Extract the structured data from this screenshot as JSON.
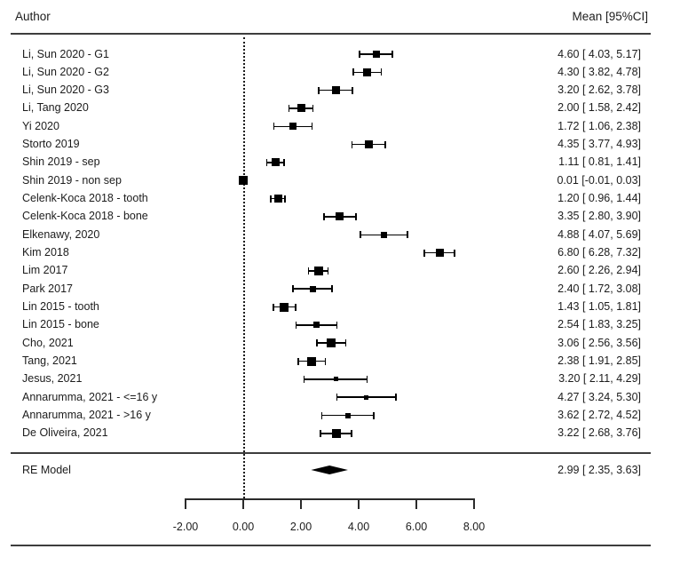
{
  "header": {
    "left": "Author",
    "right": "Mean [95%CI]"
  },
  "colors": {
    "text": "#1c1c1c",
    "rule": "#3d3d3d",
    "marker": "#000000",
    "background": "#ffffff"
  },
  "chart_data": {
    "type": "forest",
    "title": "",
    "xlabel": "",
    "xlim": [
      -2,
      8
    ],
    "grid": false,
    "axis": {
      "tick_values": [
        -2,
        0,
        2,
        4,
        6,
        8
      ],
      "tick_labels": [
        "-2.00",
        "0.00",
        "2.00",
        "4.00",
        "6.00",
        "8.00"
      ]
    },
    "zero_reference_line": 0,
    "studies": [
      {
        "author": "Li, Sun 2020 - G1",
        "mean": 4.6,
        "ci_low": 4.03,
        "ci_high": 5.17,
        "annotation": "4.60 [ 4.03, 5.17]",
        "marker_size": 8
      },
      {
        "author": "Li, Sun 2020 - G2",
        "mean": 4.3,
        "ci_low": 3.82,
        "ci_high": 4.78,
        "annotation": "4.30 [ 3.82, 4.78]",
        "marker_size": 9
      },
      {
        "author": "Li, Sun 2020 - G3",
        "mean": 3.2,
        "ci_low": 2.62,
        "ci_high": 3.78,
        "annotation": "3.20 [ 2.62, 3.78]",
        "marker_size": 9
      },
      {
        "author": "Li, Tang 2020",
        "mean": 2.0,
        "ci_low": 1.58,
        "ci_high": 2.42,
        "annotation": "2.00 [ 1.58, 2.42]",
        "marker_size": 9
      },
      {
        "author": "Yi 2020",
        "mean": 1.72,
        "ci_low": 1.06,
        "ci_high": 2.38,
        "annotation": "1.72 [ 1.06, 2.38]",
        "marker_size": 8
      },
      {
        "author": "Storto 2019",
        "mean": 4.35,
        "ci_low": 3.77,
        "ci_high": 4.93,
        "annotation": "4.35 [ 3.77, 4.93]",
        "marker_size": 9
      },
      {
        "author": "Shin 2019 - sep",
        "mean": 1.11,
        "ci_low": 0.81,
        "ci_high": 1.41,
        "annotation": "1.11 [ 0.81, 1.41]",
        "marker_size": 9
      },
      {
        "author": "Shin 2019 - non sep",
        "mean": 0.01,
        "ci_low": -0.01,
        "ci_high": 0.03,
        "annotation": "0.01 [-0.01, 0.03]",
        "marker_size": 10
      },
      {
        "author": "Celenk-Koca 2018 - tooth",
        "mean": 1.2,
        "ci_low": 0.96,
        "ci_high": 1.44,
        "annotation": "1.20 [ 0.96, 1.44]",
        "marker_size": 9
      },
      {
        "author": "Celenk-Koca 2018 - bone",
        "mean": 3.35,
        "ci_low": 2.8,
        "ci_high": 3.9,
        "annotation": "3.35 [ 2.80, 3.90]",
        "marker_size": 9
      },
      {
        "author": "Elkenawy, 2020",
        "mean": 4.88,
        "ci_low": 4.07,
        "ci_high": 5.69,
        "annotation": "4.88 [ 4.07, 5.69]",
        "marker_size": 7
      },
      {
        "author": "Kim 2018",
        "mean": 6.8,
        "ci_low": 6.28,
        "ci_high": 7.32,
        "annotation": "6.80 [ 6.28, 7.32]",
        "marker_size": 9
      },
      {
        "author": "Lim 2017",
        "mean": 2.6,
        "ci_low": 2.26,
        "ci_high": 2.94,
        "annotation": "2.60 [ 2.26, 2.94]",
        "marker_size": 10
      },
      {
        "author": "Park 2017",
        "mean": 2.4,
        "ci_low": 1.72,
        "ci_high": 3.08,
        "annotation": "2.40 [ 1.72, 3.08]",
        "marker_size": 7
      },
      {
        "author": "Lin 2015 - tooth",
        "mean": 1.43,
        "ci_low": 1.05,
        "ci_high": 1.81,
        "annotation": "1.43 [ 1.05, 1.81]",
        "marker_size": 10
      },
      {
        "author": "Lin 2015 - bone",
        "mean": 2.54,
        "ci_low": 1.83,
        "ci_high": 3.25,
        "annotation": "2.54 [ 1.83, 3.25]",
        "marker_size": 7
      },
      {
        "author": "Cho, 2021",
        "mean": 3.06,
        "ci_low": 2.56,
        "ci_high": 3.56,
        "annotation": "3.06 [ 2.56, 3.56]",
        "marker_size": 10
      },
      {
        "author": "Tang, 2021",
        "mean": 2.38,
        "ci_low": 1.91,
        "ci_high": 2.85,
        "annotation": "2.38 [ 1.91, 2.85]",
        "marker_size": 10
      },
      {
        "author": "Jesus, 2021",
        "mean": 3.2,
        "ci_low": 2.11,
        "ci_high": 4.29,
        "annotation": "3.20 [ 2.11, 4.29]",
        "marker_size": 5
      },
      {
        "author": "Annarumma, 2021 - <=16 y",
        "mean": 4.27,
        "ci_low": 3.24,
        "ci_high": 5.3,
        "annotation": "4.27 [ 3.24, 5.30]",
        "marker_size": 5
      },
      {
        "author": "Annarumma, 2021 - >16 y",
        "mean": 3.62,
        "ci_low": 2.72,
        "ci_high": 4.52,
        "annotation": "3.62 [ 2.72, 4.52]",
        "marker_size": 6
      },
      {
        "author": "De Oliveira, 2021",
        "mean": 3.22,
        "ci_low": 2.68,
        "ci_high": 3.76,
        "annotation": "3.22 [ 2.68, 3.76]",
        "marker_size": 10
      }
    ],
    "summary": {
      "label": "RE Model",
      "mean": 2.99,
      "ci_low": 2.35,
      "ci_high": 3.63,
      "annotation": "2.99 [ 2.35, 3.63]"
    }
  }
}
